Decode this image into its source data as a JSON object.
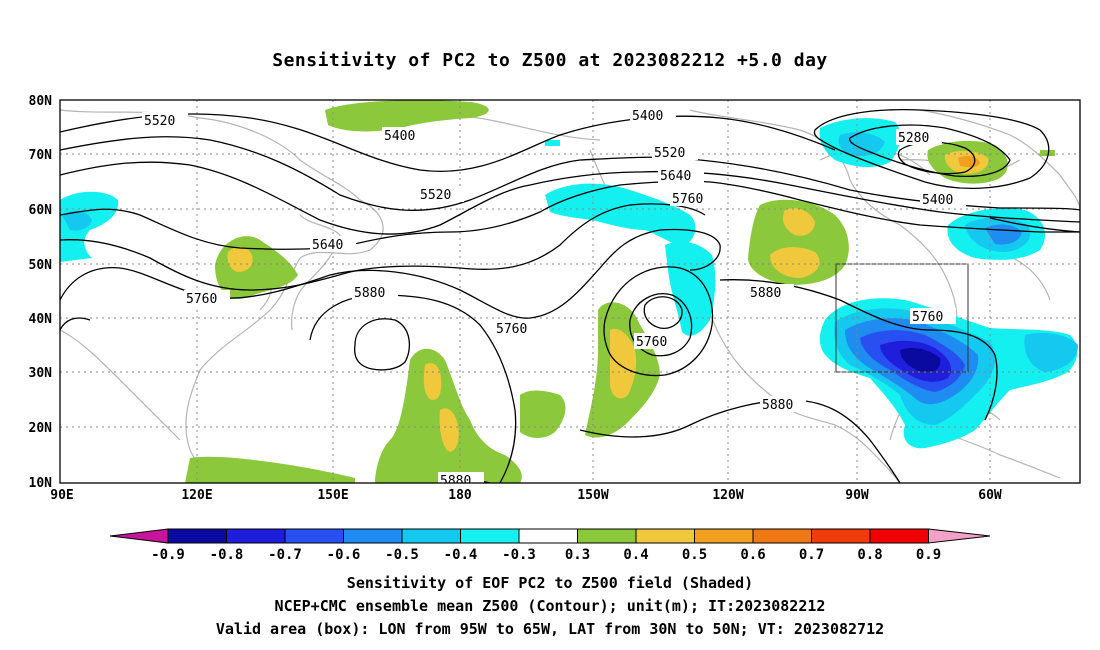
{
  "title": "Sensitivity of PC2 to Z500 at 2023082212 +5.0 day",
  "map": {
    "lat_labels": [
      "80N",
      "70N",
      "60N",
      "50N",
      "40N",
      "30N",
      "20N",
      "10N"
    ],
    "lon_labels": [
      "90E",
      "120E",
      "150E",
      "180",
      "150W",
      "120W",
      "90W",
      "60W"
    ],
    "contours": [
      {
        "label": "5520",
        "level": 5520
      },
      {
        "label": "5400",
        "level": 5400
      },
      {
        "label": "5400",
        "level": 5400
      },
      {
        "label": "5280",
        "level": 5280
      },
      {
        "label": "5520",
        "level": 5520
      },
      {
        "label": "5640",
        "level": 5640
      },
      {
        "label": "5520",
        "level": 5520
      },
      {
        "label": "5760",
        "level": 5760
      },
      {
        "label": "5400",
        "level": 5400
      },
      {
        "label": "5640",
        "level": 5640
      },
      {
        "label": "5760",
        "level": 5760
      },
      {
        "label": "5880",
        "level": 5880
      },
      {
        "label": "5760",
        "level": 5760
      },
      {
        "label": "5760",
        "level": 5760
      },
      {
        "label": "5880",
        "level": 5880
      },
      {
        "label": "5760",
        "level": 5760
      },
      {
        "label": "5880",
        "level": 5880
      },
      {
        "label": "5880",
        "level": 5880
      }
    ],
    "valid_box": {
      "lon_min": "95W",
      "lon_max": "65W",
      "lat_min": "30N",
      "lat_max": "50N"
    }
  },
  "colorbar": {
    "labels": [
      "-0.9",
      "-0.8",
      "-0.7",
      "-0.6",
      "-0.5",
      "-0.4",
      "-0.3",
      "0.3",
      "0.4",
      "0.5",
      "0.6",
      "0.7",
      "0.8",
      "0.9"
    ],
    "colors": [
      "#0a0aa0",
      "#1e1edc",
      "#2850f0",
      "#1e8cf0",
      "#14c8f0",
      "#14f0f0",
      "#ffffff",
      "#8cc83c",
      "#f0c83c",
      "#f0a01e",
      "#f07814",
      "#f03c0a",
      "#f00000"
    ],
    "low_extend_color": "#c8149c",
    "high_extend_color": "#f5a0c8"
  },
  "footer": {
    "line1": "Sensitivity of EOF PC2 to Z500 field (Shaded)",
    "line2": "NCEP+CMC ensemble mean Z500 (Contour); unit(m); IT:2023082212",
    "line3": "Valid area (box): LON from 95W to 65W, LAT from 30N to 50N; VT: 2023082712"
  }
}
